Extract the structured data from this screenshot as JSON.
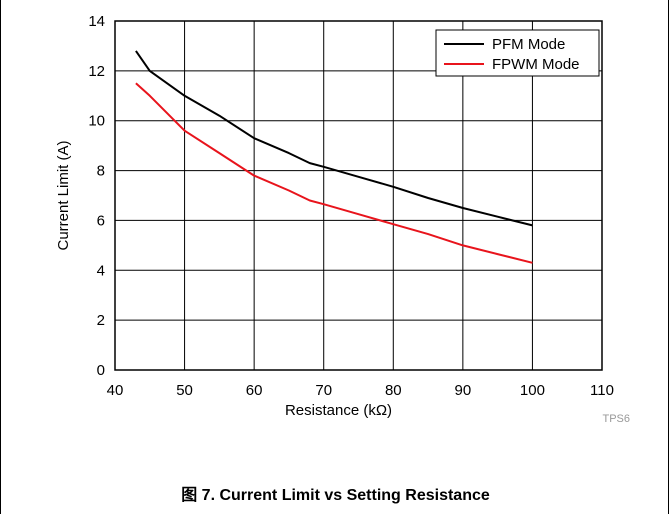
{
  "caption": "图 7. Current Limit vs Setting Resistance",
  "figure_code": "TPS6",
  "chart_data": {
    "type": "line",
    "xlabel": "Resistance (kΩ)",
    "ylabel": "Current Limit (A)",
    "xlim": [
      40,
      110
    ],
    "ylim": [
      0,
      14
    ],
    "xticks": [
      40,
      50,
      60,
      70,
      80,
      90,
      100,
      110
    ],
    "yticks": [
      0,
      2,
      4,
      6,
      8,
      10,
      12,
      14
    ],
    "grid": true,
    "legend_position": "top-right",
    "series": [
      {
        "name": "PFM Mode",
        "color": "#000000",
        "x": [
          43,
          45,
          50,
          55,
          60,
          65,
          68,
          70,
          75,
          80,
          85,
          90,
          95,
          100
        ],
        "y": [
          12.8,
          12.0,
          11.0,
          10.2,
          9.3,
          8.7,
          8.3,
          8.15,
          7.75,
          7.35,
          6.9,
          6.5,
          6.15,
          5.8
        ]
      },
      {
        "name": "FPWM Mode",
        "color": "#e8141c",
        "x": [
          43,
          45,
          50,
          55,
          60,
          65,
          68,
          70,
          75,
          80,
          85,
          90,
          95,
          100
        ],
        "y": [
          11.5,
          11.0,
          9.6,
          8.7,
          7.8,
          7.2,
          6.8,
          6.65,
          6.25,
          5.85,
          5.45,
          5.0,
          4.65,
          4.3
        ]
      }
    ]
  }
}
